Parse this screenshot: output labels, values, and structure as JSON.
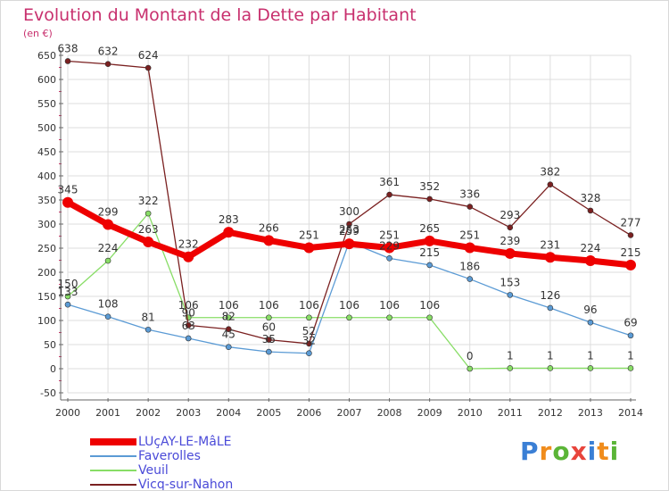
{
  "chart_data": {
    "type": "line",
    "title": "Evolution du Montant de la Dette par Habitant",
    "unit_label": "(en €)",
    "x": [
      2000,
      2001,
      2002,
      2003,
      2004,
      2005,
      2006,
      2007,
      2008,
      2009,
      2010,
      2011,
      2012,
      2013,
      2014
    ],
    "x_tick_labels": [
      "2000",
      "2001",
      "2002",
      "2003",
      "2004",
      "2005",
      "2006",
      "2007",
      "2008",
      "2009",
      "2010",
      "2011",
      "2012",
      "2013",
      "2014"
    ],
    "ylim": [
      -50,
      650
    ],
    "y_ticks": [
      -50,
      0,
      50,
      100,
      150,
      200,
      250,
      300,
      350,
      400,
      450,
      500,
      550,
      600,
      650
    ],
    "y_tick_labels": [
      "-50",
      "0",
      "50",
      "100",
      "150",
      "200",
      "250",
      "300",
      "350",
      "400",
      "450",
      "500",
      "550",
      "600",
      "650"
    ],
    "grid": true,
    "legend_position": "bottom-left",
    "series": [
      {
        "name": "LUçAY-LE-MâLE",
        "color": "#ee0000",
        "values": [
          345,
          299,
          263,
          232,
          283,
          266,
          251,
          259,
          251,
          265,
          251,
          239,
          231,
          224,
          215
        ],
        "labels": [
          "345",
          "299",
          "263",
          "232",
          "283",
          "266",
          "251",
          "259",
          "251",
          "265",
          "251",
          "239",
          "231",
          "224",
          "215"
        ]
      },
      {
        "name": "Faverolles",
        "color": "#5b9bd5",
        "values": [
          133,
          108,
          81,
          63,
          45,
          35,
          32,
          263,
          229,
          215,
          186,
          153,
          126,
          96,
          69
        ],
        "labels": [
          "133",
          "108",
          "81",
          "63",
          "45",
          "35",
          "32",
          "263",
          "229",
          "215",
          "186",
          "153",
          "126",
          "96",
          "69"
        ]
      },
      {
        "name": "Veuil",
        "color": "#88dd66",
        "values": [
          150,
          224,
          322,
          106,
          106,
          106,
          106,
          106,
          106,
          106,
          0,
          1,
          1,
          1,
          1
        ],
        "labels": [
          "150",
          "224",
          "322",
          "106",
          "106",
          "106",
          "106",
          "106",
          "106",
          "106",
          "0",
          "1",
          "1",
          "1",
          "1"
        ]
      },
      {
        "name": "Vicq-sur-Nahon",
        "color": "#7a2020",
        "values": [
          638,
          632,
          624,
          90,
          82,
          60,
          52,
          300,
          361,
          352,
          336,
          293,
          382,
          328,
          277
        ],
        "labels": [
          "638",
          "632",
          "624",
          "90",
          "82",
          "60",
          "52",
          "300",
          "361",
          "352",
          "336",
          "293",
          "382",
          "328",
          "277"
        ]
      }
    ]
  },
  "colors": {
    "title": "#c8306e",
    "axis_text": "#333333",
    "grid": "#dddddd",
    "axis_line": "#666666",
    "minor_tick": "#cc3366",
    "series_label": "#333333"
  },
  "watermark": {
    "letters": [
      "P",
      "r",
      "o",
      "x",
      "i",
      "t",
      "i"
    ],
    "letter_colors": [
      "#3a7fd5",
      "#f08c1c",
      "#5bb537",
      "#e8453c",
      "#3a7fd5",
      "#f08c1c",
      "#5bb537"
    ]
  }
}
